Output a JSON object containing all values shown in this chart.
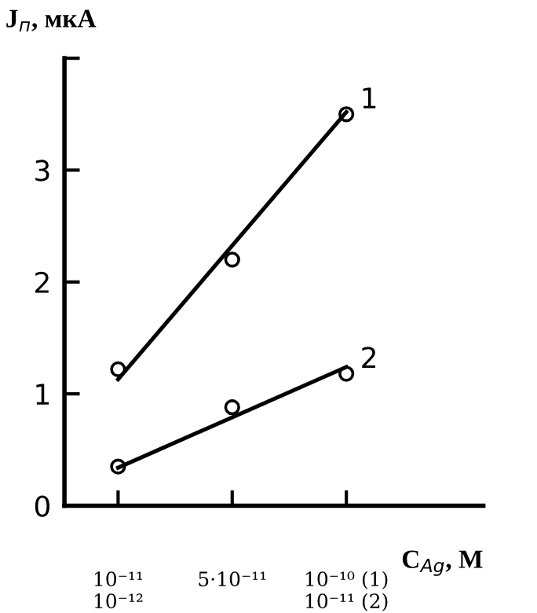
{
  "chart_data": {
    "type": "scatter",
    "xlabel": "C$_{Ag}$, M",
    "ylabel": "J$_{п}$, мкА",
    "categories": [
      "10⁻¹¹\n10⁻¹²",
      "5·10⁻¹¹",
      "10⁻¹⁰ (1)\n10⁻¹¹ (2)"
    ],
    "ylim": [
      0,
      4
    ],
    "yticks": [
      0,
      1,
      2,
      3,
      {
        "value": 4,
        "label": null
      }
    ],
    "marker": "circle",
    "grid": false,
    "legend": false,
    "series": [
      {
        "name": "1",
        "color": "#000000",
        "values": [
          1.22,
          2.2,
          3.5
        ]
      },
      {
        "name": "2",
        "color": "#000000",
        "values": [
          0.35,
          0.88,
          1.18
        ]
      },
      {
        "type": "line",
        "color": "#000000",
        "x": [
          "10⁻¹¹\n10⁻¹²",
          "10⁻¹⁰ (1)\n10⁻¹¹ (2)"
        ],
        "values": [
          1.13,
          3.52
        ],
        "marker": "none",
        "line_style": "solid"
      },
      {
        "type": "line",
        "color": "#000000",
        "x": [
          "10⁻¹¹\n10⁻¹²",
          "10⁻¹⁰ (1)\n10⁻¹¹ (2)"
        ],
        "values": [
          0.34,
          1.24
        ],
        "marker": "none",
        "line_style": "solid"
      }
    ]
  }
}
